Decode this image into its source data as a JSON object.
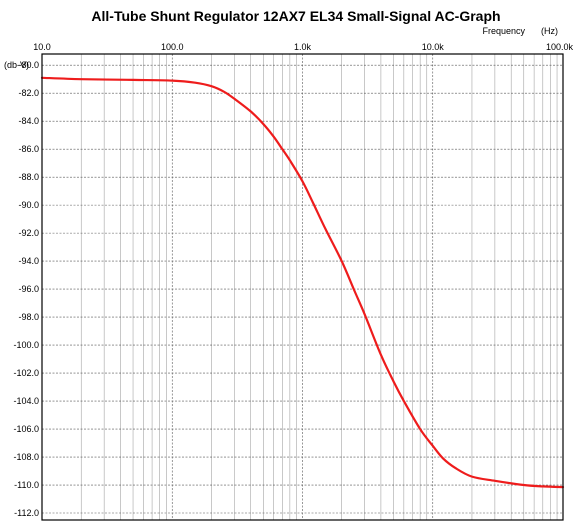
{
  "chart_data": {
    "type": "line",
    "title": "All-Tube Shunt Regulator 12AX7 EL34 Small-Signal AC-Graph",
    "xlabel": "Frequency",
    "xunit": "(Hz)",
    "ylabel": "(db-V)",
    "xscale": "log",
    "xlim": [
      10,
      100000
    ],
    "ylim": [
      -112.5,
      -79.2
    ],
    "x_ticks": [
      10,
      100,
      1000,
      10000,
      100000
    ],
    "x_tick_labels": [
      "10.0",
      "100.0",
      "1.0k",
      "10.0k",
      "100.0k"
    ],
    "y_ticks": [
      -80,
      -82,
      -84,
      -86,
      -88,
      -90,
      -92,
      -94,
      -96,
      -98,
      -100,
      -102,
      -104,
      -106,
      -108,
      -110,
      -112
    ],
    "y_tick_labels": [
      "-80.0",
      "-82.0",
      "-84.0",
      "-86.0",
      "-88.0",
      "-90.0",
      "-92.0",
      "-94.0",
      "-96.0",
      "-98.0",
      "-100.0",
      "-102.0",
      "-104.0",
      "-106.0",
      "-108.0",
      "-110.0",
      "-112.0"
    ],
    "grid": true,
    "series": [
      {
        "color": "#ee1c1c",
        "x": [
          10,
          20,
          50,
          100,
          150,
          200,
          250,
          300,
          400,
          500,
          600,
          700,
          800,
          1000,
          1200,
          1500,
          2000,
          2500,
          3000,
          4000,
          5000,
          6000,
          8000,
          10000,
          12000,
          15000,
          20000,
          30000,
          50000,
          70000,
          100000
        ],
        "y": [
          -80.9,
          -81.0,
          -81.05,
          -81.1,
          -81.25,
          -81.5,
          -81.9,
          -82.4,
          -83.3,
          -84.2,
          -85.1,
          -86.0,
          -86.8,
          -88.3,
          -89.8,
          -91.7,
          -94.0,
          -96.1,
          -97.8,
          -100.7,
          -102.6,
          -104.0,
          -106.0,
          -107.2,
          -108.1,
          -108.8,
          -109.4,
          -109.7,
          -110.0,
          -110.1,
          -110.15
        ]
      }
    ]
  }
}
